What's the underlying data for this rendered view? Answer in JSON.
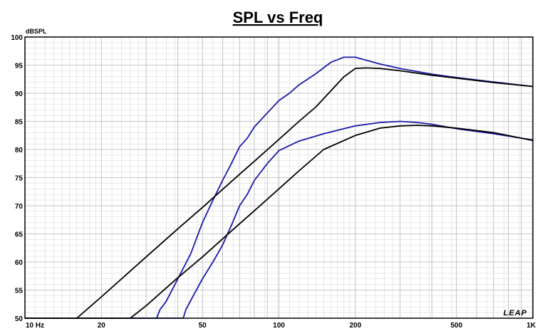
{
  "chart_data": {
    "type": "line",
    "title": "SPL vs Freq",
    "ylabel": "dBSPL",
    "xlabel": "",
    "x_scale": "log",
    "xlim": [
      10,
      1000
    ],
    "ylim": [
      50,
      100
    ],
    "grid": true,
    "y_ticks": [
      "50",
      "55",
      "60",
      "65",
      "70",
      "75",
      "80",
      "85",
      "90",
      "95",
      "100"
    ],
    "x_ticks": [
      {
        "value": 10,
        "label": "10 Hz"
      },
      {
        "value": 20,
        "label": "20"
      },
      {
        "value": 50,
        "label": "50"
      },
      {
        "value": 100,
        "label": "100"
      },
      {
        "value": 200,
        "label": "200"
      },
      {
        "value": 500,
        "label": "500"
      },
      {
        "value": 1000,
        "label": "1K"
      }
    ],
    "logo": "LEAP",
    "colors": {
      "blue": "#1a1aa8",
      "black": "#000000",
      "grid": "#b4b4b4"
    },
    "series": [
      {
        "color": "#1a1aa8",
        "x": [
          10,
          33,
          34,
          36,
          40,
          45,
          50,
          55,
          60,
          65,
          70,
          75,
          80,
          90,
          100,
          110,
          120,
          140,
          160,
          180,
          200,
          250,
          300,
          400,
          500,
          700,
          1000
        ],
        "y": [
          50,
          50,
          51.5,
          53,
          57,
          61.5,
          67,
          71,
          74.5,
          77.5,
          80.5,
          82,
          84,
          86.5,
          88.7,
          90,
          91.5,
          93.5,
          95.5,
          96.4,
          96.4,
          95.2,
          94.4,
          93.4,
          92.8,
          92,
          91.2
        ]
      },
      {
        "color": "#000000",
        "x": [
          10,
          16,
          20,
          30,
          40,
          50,
          60,
          70,
          80,
          100,
          120,
          140,
          160,
          180,
          200,
          220,
          250,
          300,
          400,
          500,
          700,
          1000
        ],
        "y": [
          50,
          50,
          53.8,
          60.9,
          65.9,
          69.7,
          72.9,
          75.6,
          77.9,
          81.8,
          85,
          87.6,
          90.4,
          92.9,
          94.4,
          94.5,
          94.4,
          94,
          93.2,
          92.7,
          91.9,
          91.2
        ]
      },
      {
        "color": "#1a1aa8",
        "x": [
          10,
          42,
          43,
          46,
          50,
          55,
          60,
          65,
          70,
          75,
          80,
          90,
          100,
          120,
          150,
          200,
          250,
          300,
          350,
          400,
          500,
          700,
          1000
        ],
        "y": [
          50,
          50,
          51.5,
          54,
          57,
          60,
          63,
          66.5,
          70,
          72,
          74.5,
          77.5,
          79.8,
          81.5,
          82.8,
          84.2,
          84.8,
          85,
          84.8,
          84.5,
          83.7,
          82.8,
          81.7
        ]
      },
      {
        "color": "#000000",
        "x": [
          10,
          26,
          30,
          40,
          50,
          60,
          70,
          80,
          100,
          120,
          150,
          200,
          250,
          300,
          350,
          400,
          500,
          700,
          1000
        ],
        "y": [
          50,
          50,
          52.2,
          57.2,
          60.9,
          64.1,
          66.8,
          69.1,
          73,
          76.2,
          80,
          82.5,
          83.8,
          84.2,
          84.3,
          84.2,
          83.8,
          83,
          81.6
        ]
      }
    ]
  }
}
